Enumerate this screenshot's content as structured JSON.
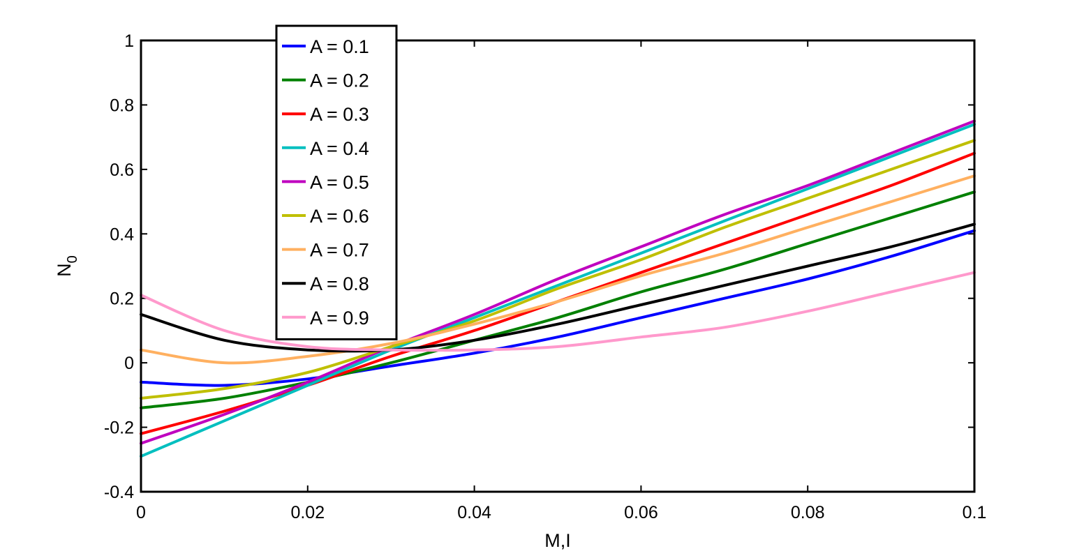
{
  "chart_data": {
    "type": "line",
    "xlabel": "M,I",
    "ylabel": "N",
    "ylabel_sub": "0",
    "xlim": [
      0,
      0.1
    ],
    "ylim": [
      -0.4,
      1
    ],
    "x_ticks": [
      0,
      0.02,
      0.04,
      0.06,
      0.08,
      0.1
    ],
    "x_tick_labels": [
      "0",
      "0.02",
      "0.04",
      "0.06",
      "0.08",
      "0.1"
    ],
    "y_ticks": [
      -0.4,
      -0.2,
      0,
      0.2,
      0.4,
      0.6,
      0.8,
      1
    ],
    "y_tick_labels": [
      "-0.4",
      "-0.2",
      "0",
      "0.2",
      "0.4",
      "0.6",
      "0.8",
      "1"
    ],
    "grid": false,
    "legend_position": "top-left",
    "x": [
      0,
      0.01,
      0.02,
      0.03,
      0.04,
      0.05,
      0.06,
      0.07,
      0.08,
      0.09,
      0.1
    ],
    "series": [
      {
        "name": "A = 0.1",
        "color": "#0000ff",
        "values": [
          -0.06,
          -0.07,
          -0.05,
          -0.01,
          0.03,
          0.08,
          0.14,
          0.2,
          0.26,
          0.33,
          0.41
        ]
      },
      {
        "name": "A = 0.2",
        "color": "#008000",
        "values": [
          -0.14,
          -0.11,
          -0.06,
          0.0,
          0.07,
          0.14,
          0.22,
          0.29,
          0.37,
          0.45,
          0.53
        ]
      },
      {
        "name": "A = 0.3",
        "color": "#ff0000",
        "values": [
          -0.22,
          -0.15,
          -0.07,
          0.02,
          0.1,
          0.19,
          0.28,
          0.37,
          0.46,
          0.55,
          0.65
        ]
      },
      {
        "name": "A = 0.4",
        "color": "#00bfbf",
        "values": [
          -0.29,
          -0.18,
          -0.07,
          0.04,
          0.14,
          0.24,
          0.34,
          0.44,
          0.54,
          0.64,
          0.74
        ]
      },
      {
        "name": "A = 0.5",
        "color": "#bf00bf",
        "values": [
          -0.25,
          -0.16,
          -0.06,
          0.05,
          0.15,
          0.26,
          0.36,
          0.46,
          0.55,
          0.65,
          0.75
        ]
      },
      {
        "name": "A = 0.6",
        "color": "#bfbf00",
        "values": [
          -0.11,
          -0.08,
          -0.03,
          0.05,
          0.13,
          0.23,
          0.32,
          0.42,
          0.51,
          0.6,
          0.69
        ]
      },
      {
        "name": "A = 0.7",
        "color": "#ffb060",
        "values": [
          0.04,
          0.0,
          0.02,
          0.06,
          0.12,
          0.19,
          0.27,
          0.34,
          0.42,
          0.5,
          0.58
        ]
      },
      {
        "name": "A = 0.8",
        "color": "#000000",
        "values": [
          0.15,
          0.07,
          0.04,
          0.04,
          0.07,
          0.12,
          0.18,
          0.24,
          0.3,
          0.36,
          0.43
        ]
      },
      {
        "name": "A = 0.9",
        "color": "#ff99cc",
        "values": [
          0.21,
          0.1,
          0.05,
          0.04,
          0.04,
          0.05,
          0.08,
          0.11,
          0.16,
          0.22,
          0.28
        ]
      }
    ]
  }
}
